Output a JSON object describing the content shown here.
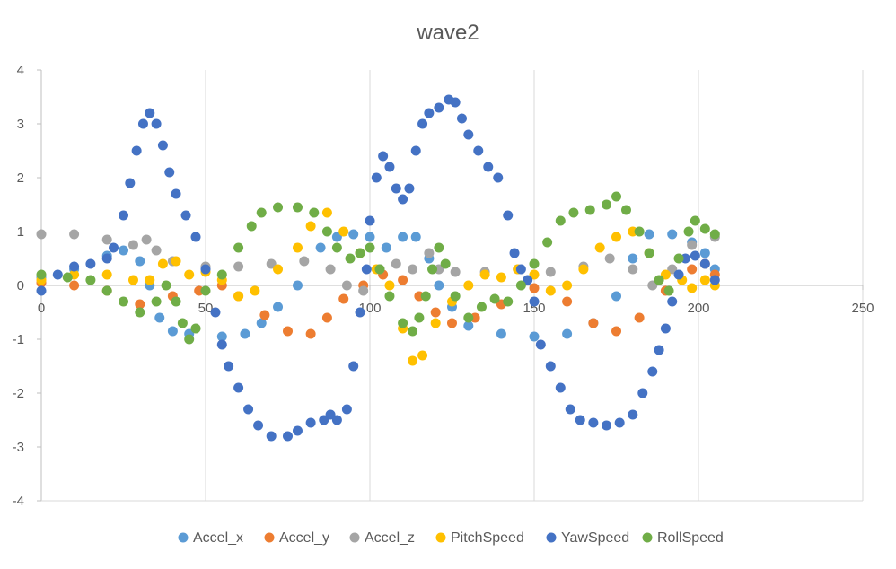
{
  "chart_data": {
    "type": "scatter",
    "title": "wave2",
    "xlabel": "",
    "ylabel": "",
    "xlim": [
      0,
      250
    ],
    "ylim": [
      -4,
      4
    ],
    "x_ticks": [
      0,
      50,
      100,
      150,
      200,
      250
    ],
    "y_ticks": [
      -4,
      -3,
      -2,
      -1,
      0,
      1,
      2,
      3,
      4
    ],
    "grid": "vertical",
    "legend_position": "bottom",
    "series": [
      {
        "name": "Accel_x",
        "color": "#5B9BD5",
        "points": [
          [
            0,
            0.15
          ],
          [
            10,
            0.3
          ],
          [
            20,
            0.55
          ],
          [
            25,
            0.65
          ],
          [
            30,
            0.45
          ],
          [
            33,
            0.0
          ],
          [
            36,
            -0.6
          ],
          [
            40,
            -0.85
          ],
          [
            45,
            -0.9
          ],
          [
            55,
            -0.95
          ],
          [
            62,
            -0.9
          ],
          [
            67,
            -0.7
          ],
          [
            72,
            -0.4
          ],
          [
            78,
            0.0
          ],
          [
            85,
            0.7
          ],
          [
            90,
            0.9
          ],
          [
            95,
            0.95
          ],
          [
            100,
            0.9
          ],
          [
            105,
            0.7
          ],
          [
            110,
            0.9
          ],
          [
            114,
            0.9
          ],
          [
            118,
            0.5
          ],
          [
            121,
            0.0
          ],
          [
            125,
            -0.4
          ],
          [
            130,
            -0.75
          ],
          [
            140,
            -0.9
          ],
          [
            150,
            -0.95
          ],
          [
            160,
            -0.9
          ],
          [
            168,
            -0.7
          ],
          [
            175,
            -0.2
          ],
          [
            180,
            0.5
          ],
          [
            185,
            0.95
          ],
          [
            192,
            0.95
          ],
          [
            198,
            0.8
          ],
          [
            202,
            0.6
          ],
          [
            205,
            0.3
          ]
        ]
      },
      {
        "name": "Accel_y",
        "color": "#ED7D31",
        "points": [
          [
            0,
            0.05
          ],
          [
            10,
            0.0
          ],
          [
            20,
            -0.1
          ],
          [
            30,
            -0.35
          ],
          [
            40,
            -0.2
          ],
          [
            48,
            -0.1
          ],
          [
            55,
            0.0
          ],
          [
            60,
            -0.2
          ],
          [
            68,
            -0.55
          ],
          [
            75,
            -0.85
          ],
          [
            82,
            -0.9
          ],
          [
            87,
            -0.6
          ],
          [
            92,
            -0.25
          ],
          [
            98,
            0.0
          ],
          [
            104,
            0.2
          ],
          [
            110,
            0.1
          ],
          [
            115,
            -0.2
          ],
          [
            120,
            -0.5
          ],
          [
            125,
            -0.7
          ],
          [
            132,
            -0.6
          ],
          [
            140,
            -0.35
          ],
          [
            150,
            -0.05
          ],
          [
            160,
            -0.3
          ],
          [
            168,
            -0.7
          ],
          [
            175,
            -0.85
          ],
          [
            182,
            -0.6
          ],
          [
            190,
            -0.1
          ],
          [
            198,
            0.3
          ],
          [
            202,
            0.4
          ],
          [
            205,
            0.2
          ]
        ]
      },
      {
        "name": "Accel_z",
        "color": "#A5A5A5",
        "points": [
          [
            0,
            0.95
          ],
          [
            10,
            0.95
          ],
          [
            20,
            0.85
          ],
          [
            28,
            0.75
          ],
          [
            32,
            0.85
          ],
          [
            35,
            0.65
          ],
          [
            40,
            0.45
          ],
          [
            50,
            0.35
          ],
          [
            60,
            0.35
          ],
          [
            70,
            0.4
          ],
          [
            80,
            0.45
          ],
          [
            88,
            0.3
          ],
          [
            93,
            0.0
          ],
          [
            98,
            -0.1
          ],
          [
            103,
            0.3
          ],
          [
            108,
            0.4
          ],
          [
            113,
            0.3
          ],
          [
            118,
            0.6
          ],
          [
            121,
            0.3
          ],
          [
            126,
            0.25
          ],
          [
            135,
            0.25
          ],
          [
            145,
            0.3
          ],
          [
            155,
            0.25
          ],
          [
            165,
            0.35
          ],
          [
            173,
            0.5
          ],
          [
            180,
            0.3
          ],
          [
            186,
            0.0
          ],
          [
            192,
            0.3
          ],
          [
            198,
            0.75
          ],
          [
            205,
            0.9
          ]
        ]
      },
      {
        "name": "PitchSpeed",
        "color": "#FFC000",
        "points": [
          [
            0,
            0.1
          ],
          [
            10,
            0.2
          ],
          [
            20,
            0.2
          ],
          [
            28,
            0.1
          ],
          [
            33,
            0.1
          ],
          [
            37,
            0.4
          ],
          [
            41,
            0.45
          ],
          [
            45,
            0.2
          ],
          [
            50,
            0.25
          ],
          [
            55,
            0.1
          ],
          [
            60,
            -0.2
          ],
          [
            65,
            -0.1
          ],
          [
            72,
            0.3
          ],
          [
            78,
            0.7
          ],
          [
            82,
            1.1
          ],
          [
            87,
            1.35
          ],
          [
            92,
            1.0
          ],
          [
            97,
            0.6
          ],
          [
            102,
            0.3
          ],
          [
            106,
            0.0
          ],
          [
            110,
            -0.8
          ],
          [
            113,
            -1.4
          ],
          [
            116,
            -1.3
          ],
          [
            120,
            -0.7
          ],
          [
            125,
            -0.3
          ],
          [
            130,
            0.0
          ],
          [
            135,
            0.2
          ],
          [
            140,
            0.15
          ],
          [
            145,
            0.3
          ],
          [
            150,
            0.2
          ],
          [
            155,
            -0.1
          ],
          [
            160,
            0.0
          ],
          [
            165,
            0.3
          ],
          [
            170,
            0.7
          ],
          [
            175,
            0.9
          ],
          [
            180,
            1.0
          ],
          [
            185,
            0.6
          ],
          [
            190,
            0.2
          ],
          [
            195,
            0.1
          ],
          [
            198,
            -0.05
          ],
          [
            202,
            0.1
          ],
          [
            205,
            0.0
          ]
        ]
      },
      {
        "name": "YawSpeed",
        "color": "#4472C4",
        "points": [
          [
            0,
            -0.1
          ],
          [
            5,
            0.2
          ],
          [
            10,
            0.35
          ],
          [
            15,
            0.4
          ],
          [
            20,
            0.5
          ],
          [
            22,
            0.7
          ],
          [
            25,
            1.3
          ],
          [
            27,
            1.9
          ],
          [
            29,
            2.5
          ],
          [
            31,
            3.0
          ],
          [
            33,
            3.2
          ],
          [
            35,
            3.0
          ],
          [
            37,
            2.6
          ],
          [
            39,
            2.1
          ],
          [
            41,
            1.7
          ],
          [
            44,
            1.3
          ],
          [
            47,
            0.9
          ],
          [
            50,
            0.3
          ],
          [
            53,
            -0.5
          ],
          [
            55,
            -1.1
          ],
          [
            57,
            -1.5
          ],
          [
            60,
            -1.9
          ],
          [
            63,
            -2.3
          ],
          [
            66,
            -2.6
          ],
          [
            70,
            -2.8
          ],
          [
            75,
            -2.8
          ],
          [
            78,
            -2.7
          ],
          [
            82,
            -2.55
          ],
          [
            86,
            -2.5
          ],
          [
            88,
            -2.4
          ],
          [
            90,
            -2.5
          ],
          [
            93,
            -2.3
          ],
          [
            95,
            -1.5
          ],
          [
            97,
            -0.5
          ],
          [
            99,
            0.3
          ],
          [
            100,
            1.2
          ],
          [
            102,
            2.0
          ],
          [
            104,
            2.4
          ],
          [
            106,
            2.2
          ],
          [
            108,
            1.8
          ],
          [
            110,
            1.6
          ],
          [
            112,
            1.8
          ],
          [
            114,
            2.5
          ],
          [
            116,
            3.0
          ],
          [
            118,
            3.2
          ],
          [
            121,
            3.3
          ],
          [
            124,
            3.45
          ],
          [
            126,
            3.4
          ],
          [
            128,
            3.1
          ],
          [
            130,
            2.8
          ],
          [
            133,
            2.5
          ],
          [
            136,
            2.2
          ],
          [
            139,
            2.0
          ],
          [
            142,
            1.3
          ],
          [
            144,
            0.6
          ],
          [
            146,
            0.3
          ],
          [
            148,
            0.1
          ],
          [
            150,
            -0.3
          ],
          [
            152,
            -1.1
          ],
          [
            155,
            -1.5
          ],
          [
            158,
            -1.9
          ],
          [
            161,
            -2.3
          ],
          [
            164,
            -2.5
          ],
          [
            168,
            -2.55
          ],
          [
            172,
            -2.6
          ],
          [
            176,
            -2.55
          ],
          [
            180,
            -2.4
          ],
          [
            183,
            -2.0
          ],
          [
            186,
            -1.6
          ],
          [
            188,
            -1.2
          ],
          [
            190,
            -0.8
          ],
          [
            192,
            -0.3
          ],
          [
            194,
            0.2
          ],
          [
            196,
            0.5
          ],
          [
            199,
            0.55
          ],
          [
            202,
            0.4
          ],
          [
            205,
            0.1
          ]
        ]
      },
      {
        "name": "RollSpeed",
        "color": "#70AD47",
        "points": [
          [
            0,
            0.2
          ],
          [
            8,
            0.15
          ],
          [
            15,
            0.1
          ],
          [
            20,
            -0.1
          ],
          [
            25,
            -0.3
          ],
          [
            30,
            -0.5
          ],
          [
            35,
            -0.3
          ],
          [
            38,
            0.0
          ],
          [
            41,
            -0.3
          ],
          [
            43,
            -0.7
          ],
          [
            45,
            -1.0
          ],
          [
            47,
            -0.8
          ],
          [
            50,
            -0.1
          ],
          [
            55,
            0.2
          ],
          [
            60,
            0.7
          ],
          [
            64,
            1.1
          ],
          [
            67,
            1.35
          ],
          [
            72,
            1.45
          ],
          [
            78,
            1.45
          ],
          [
            83,
            1.35
          ],
          [
            87,
            1.0
          ],
          [
            90,
            0.7
          ],
          [
            94,
            0.5
          ],
          [
            97,
            0.6
          ],
          [
            100,
            0.7
          ],
          [
            103,
            0.3
          ],
          [
            106,
            -0.2
          ],
          [
            110,
            -0.7
          ],
          [
            113,
            -0.85
          ],
          [
            115,
            -0.6
          ],
          [
            117,
            -0.2
          ],
          [
            119,
            0.3
          ],
          [
            121,
            0.7
          ],
          [
            123,
            0.4
          ],
          [
            126,
            -0.2
          ],
          [
            130,
            -0.6
          ],
          [
            134,
            -0.4
          ],
          [
            138,
            -0.25
          ],
          [
            142,
            -0.3
          ],
          [
            146,
            0.0
          ],
          [
            150,
            0.4
          ],
          [
            154,
            0.8
          ],
          [
            158,
            1.2
          ],
          [
            162,
            1.35
          ],
          [
            167,
            1.4
          ],
          [
            172,
            1.5
          ],
          [
            175,
            1.65
          ],
          [
            178,
            1.4
          ],
          [
            182,
            1.0
          ],
          [
            185,
            0.6
          ],
          [
            188,
            0.1
          ],
          [
            191,
            -0.1
          ],
          [
            194,
            0.5
          ],
          [
            197,
            1.0
          ],
          [
            199,
            1.2
          ],
          [
            202,
            1.05
          ],
          [
            205,
            0.95
          ]
        ]
      }
    ]
  }
}
